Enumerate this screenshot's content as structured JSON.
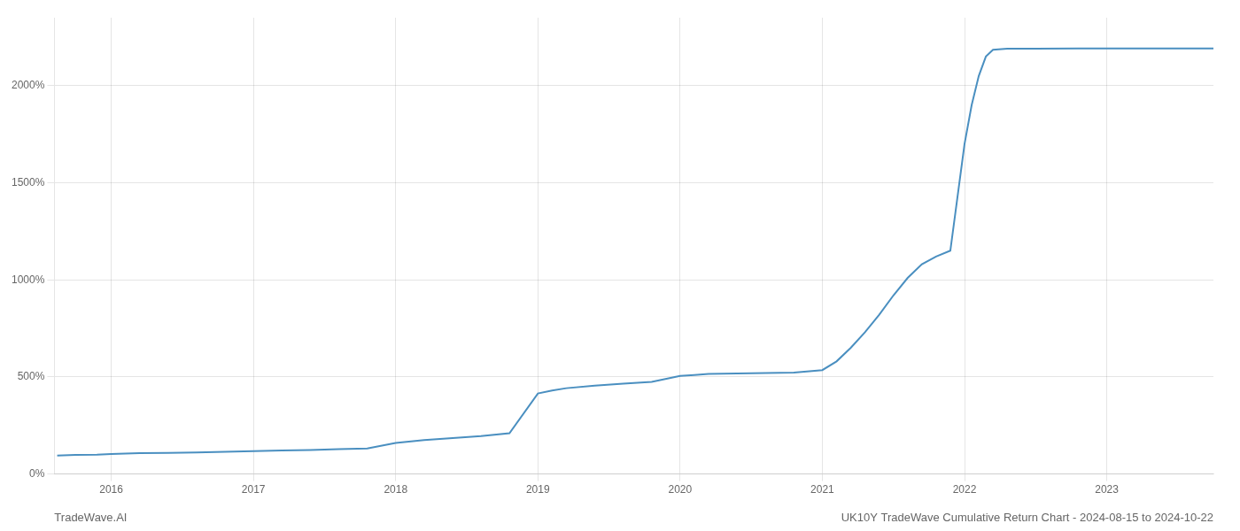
{
  "chart_data": {
    "type": "line",
    "annotations": [
      "TradeWave.AI",
      "UK10Y TradeWave Cumulative Return Chart - 2024-08-15 to 2024-10-22"
    ],
    "x": [
      2015.62,
      2015.75,
      2015.9,
      2016.0,
      2016.1,
      2016.2,
      2016.4,
      2016.6,
      2016.8,
      2017.0,
      2017.2,
      2017.4,
      2017.6,
      2017.8,
      2018.0,
      2018.2,
      2018.4,
      2018.6,
      2018.8,
      2019.0,
      2019.1,
      2019.2,
      2019.4,
      2019.6,
      2019.8,
      2020.0,
      2020.1,
      2020.2,
      2020.4,
      2020.6,
      2020.8,
      2021.0,
      2021.1,
      2021.2,
      2021.3,
      2021.4,
      2021.5,
      2021.6,
      2021.7,
      2021.8,
      2021.9,
      2022.0,
      2022.05,
      2022.1,
      2022.15,
      2022.2,
      2022.3,
      2022.5,
      2022.8,
      2023.0,
      2023.2,
      2023.4,
      2023.6,
      2023.75
    ],
    "values": [
      95,
      98,
      100,
      103,
      105,
      107,
      109,
      111,
      114,
      118,
      121,
      124,
      128,
      132,
      160,
      175,
      185,
      195,
      210,
      415,
      430,
      442,
      455,
      465,
      475,
      505,
      510,
      515,
      518,
      520,
      522,
      535,
      580,
      650,
      730,
      820,
      920,
      1010,
      1080,
      1120,
      1150,
      1700,
      1900,
      2050,
      2150,
      2185,
      2190,
      2190,
      2192,
      2192,
      2192,
      2192,
      2192,
      2192
    ],
    "color": "#4a8fc0",
    "xlim": [
      2015.6,
      2023.75
    ],
    "xticks": [
      2016,
      2017,
      2018,
      2019,
      2020,
      2021,
      2022,
      2023
    ],
    "ylim": [
      0,
      2350
    ],
    "yticks": [
      {
        "value": 0,
        "label": "0%"
      },
      {
        "value": 500,
        "label": "500%"
      },
      {
        "value": 1000,
        "label": "1000%"
      },
      {
        "value": 1500,
        "label": "1500%"
      },
      {
        "value": 2000,
        "label": "2000%"
      }
    ],
    "grid": true
  }
}
